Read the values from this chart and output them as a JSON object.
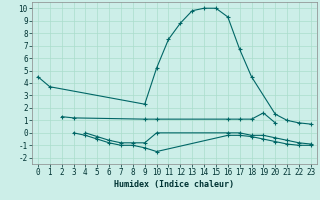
{
  "bg_color": "#cceee8",
  "grid_color": "#aaddcc",
  "line_color": "#006666",
  "xlabel": "Humidex (Indice chaleur)",
  "xlim": [
    -0.5,
    23.5
  ],
  "ylim": [
    -2.5,
    10.5
  ],
  "xticks": [
    0,
    1,
    2,
    3,
    4,
    5,
    6,
    7,
    8,
    9,
    10,
    11,
    12,
    13,
    14,
    15,
    16,
    17,
    18,
    19,
    20,
    21,
    22,
    23
  ],
  "yticks": [
    -2,
    -1,
    0,
    1,
    2,
    3,
    4,
    5,
    6,
    7,
    8,
    9,
    10
  ],
  "line1_x": [
    0,
    1,
    9,
    10,
    11,
    12,
    13,
    14,
    15,
    16,
    17,
    18,
    20,
    21,
    22,
    23
  ],
  "line1_y": [
    4.5,
    3.7,
    2.3,
    5.2,
    7.5,
    8.8,
    9.8,
    10.0,
    10.0,
    9.3,
    6.7,
    4.5,
    1.5,
    1.0,
    0.8,
    0.7
  ],
  "line2_x": [
    2,
    3,
    9,
    10,
    16,
    17,
    18,
    19,
    20
  ],
  "line2_y": [
    1.3,
    1.2,
    1.1,
    1.1,
    1.1,
    1.1,
    1.1,
    1.6,
    0.8
  ],
  "line3_x": [
    4,
    5,
    6,
    7,
    8,
    9,
    10,
    16,
    17,
    18,
    19,
    20,
    21,
    22,
    23
  ],
  "line3_y": [
    0.0,
    -0.3,
    -0.6,
    -0.8,
    -0.8,
    -0.8,
    0.0,
    0.0,
    0.0,
    -0.2,
    -0.2,
    -0.4,
    -0.6,
    -0.8,
    -0.9
  ],
  "line4_x": [
    3,
    4,
    5,
    6,
    7,
    8,
    9,
    10,
    16,
    17,
    18,
    19,
    20,
    21,
    22,
    23
  ],
  "line4_y": [
    0.0,
    -0.2,
    -0.5,
    -0.8,
    -1.0,
    -1.0,
    -1.2,
    -1.5,
    -0.2,
    -0.2,
    -0.3,
    -0.5,
    -0.7,
    -0.9,
    -1.0,
    -1.0
  ]
}
